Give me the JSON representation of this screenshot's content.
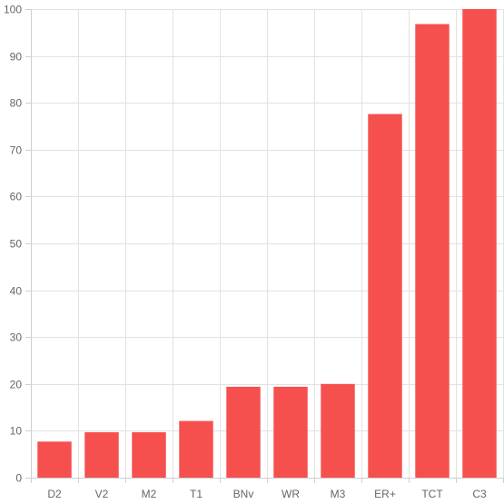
{
  "chart_data": {
    "type": "bar",
    "categories": [
      "D2",
      "V2",
      "M2",
      "T1",
      "BNv",
      "WR",
      "M3",
      "ER+",
      "TCT",
      "C3"
    ],
    "values": [
      7.7,
      9.7,
      9.7,
      12.1,
      19.4,
      19.4,
      20.0,
      77.6,
      96.8,
      100
    ],
    "ylim": [
      0,
      100
    ],
    "yticks": [
      0,
      10,
      20,
      30,
      40,
      50,
      60,
      70,
      80,
      90,
      100
    ],
    "grid": true,
    "bar_color": "#f5504e",
    "grid_color": "#e2e2e2",
    "axis_color": "#cfcfcf",
    "label_color": "#666666"
  }
}
